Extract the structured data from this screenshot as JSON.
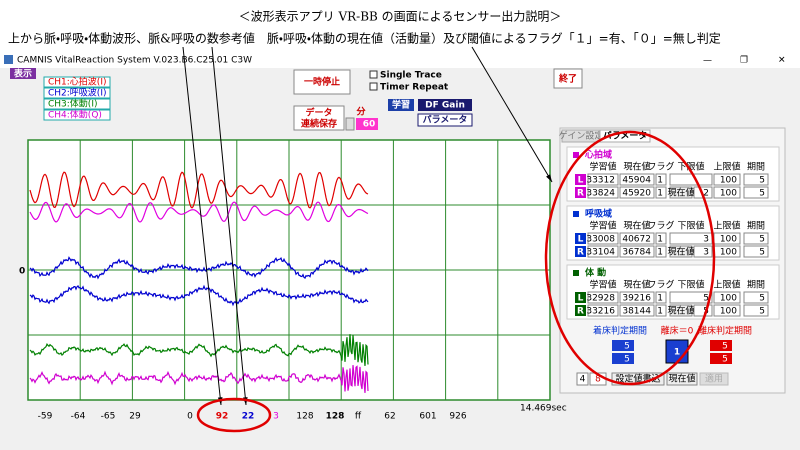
{
  "caption": {
    "title": "＜波形表示アプリ VR-BB の画面によるセンサー出力説明＞",
    "description": "上から脈・呼吸・体動波形、脈&呼吸の数参考値　脈・呼吸・体動の現在値（活動量）及び閾値によるフラグ「１」=有、「０」=無し判定"
  },
  "window": {
    "title": "CAMNIS VitalReaction System V.023.B6.C25.01 C3W",
    "menu": "表示"
  },
  "legend": [
    "CH1:心拍波(I)",
    "CH2:呼吸波(I)",
    "CH3:体動(I)",
    "CH4:体動(Q)"
  ],
  "controls": {
    "pause": "一時停止",
    "single_trace": "Single Trace",
    "timer_repeat": "Timer Repeat",
    "exit": "終了",
    "save": [
      "データ",
      "連続保存"
    ],
    "minutes_label": "分",
    "minutes": "60",
    "learn": "学習",
    "df_gain": "DF Gain",
    "parameters": "パラメータ"
  },
  "chart": {
    "zero_label": "0",
    "readouts": [
      "-59",
      "-64",
      "-65",
      "29",
      "0",
      "92",
      "22",
      "3",
      "128",
      "128",
      "ff",
      "62",
      "601",
      "926"
    ],
    "elapsed": "14.469sec"
  },
  "panel": {
    "tabs": [
      "ゲイン設定",
      "パラメータ"
    ],
    "columns": [
      "学習値",
      "現在値",
      "フラグ",
      "下限値",
      "上限値",
      "期間"
    ],
    "current_button": "現在値",
    "sections": [
      {
        "title": "心拍域",
        "rows": [
          {
            "side": "L",
            "learned": "33312",
            "current": "45904",
            "flag": "1",
            "upper": "100",
            "period": "5"
          },
          {
            "side": "R",
            "learned": "33824",
            "current": "45920",
            "flag": "1",
            "lower": "2",
            "upper": "100",
            "period": "5"
          }
        ]
      },
      {
        "title": "呼吸域",
        "rows": [
          {
            "side": "L",
            "learned": "33008",
            "current": "40672",
            "flag": "1",
            "lower": "3",
            "upper": "100",
            "period": "5"
          },
          {
            "side": "R",
            "learned": "33104",
            "current": "36784",
            "flag": "1",
            "lower": "3",
            "upper": "100",
            "period": "5"
          }
        ]
      },
      {
        "title": "体 動",
        "rows": [
          {
            "side": "L",
            "learned": "32928",
            "current": "39216",
            "flag": "1",
            "lower": "5",
            "upper": "100",
            "period": "5"
          },
          {
            "side": "R",
            "learned": "33216",
            "current": "38144",
            "flag": "1",
            "lower": "5",
            "upper": "100",
            "period": "5"
          }
        ]
      }
    ],
    "bed": {
      "in_label": "着床判定期間",
      "in_values": [
        "5",
        "5"
      ],
      "out_zero": "離床＝0",
      "state": "1",
      "out_label": "離床判定期間",
      "out_values": [
        "5",
        "5"
      ]
    },
    "footer": {
      "values": [
        "4",
        "8"
      ],
      "write": "設定値書込",
      "current": "現在値",
      "apply": "適用"
    }
  }
}
